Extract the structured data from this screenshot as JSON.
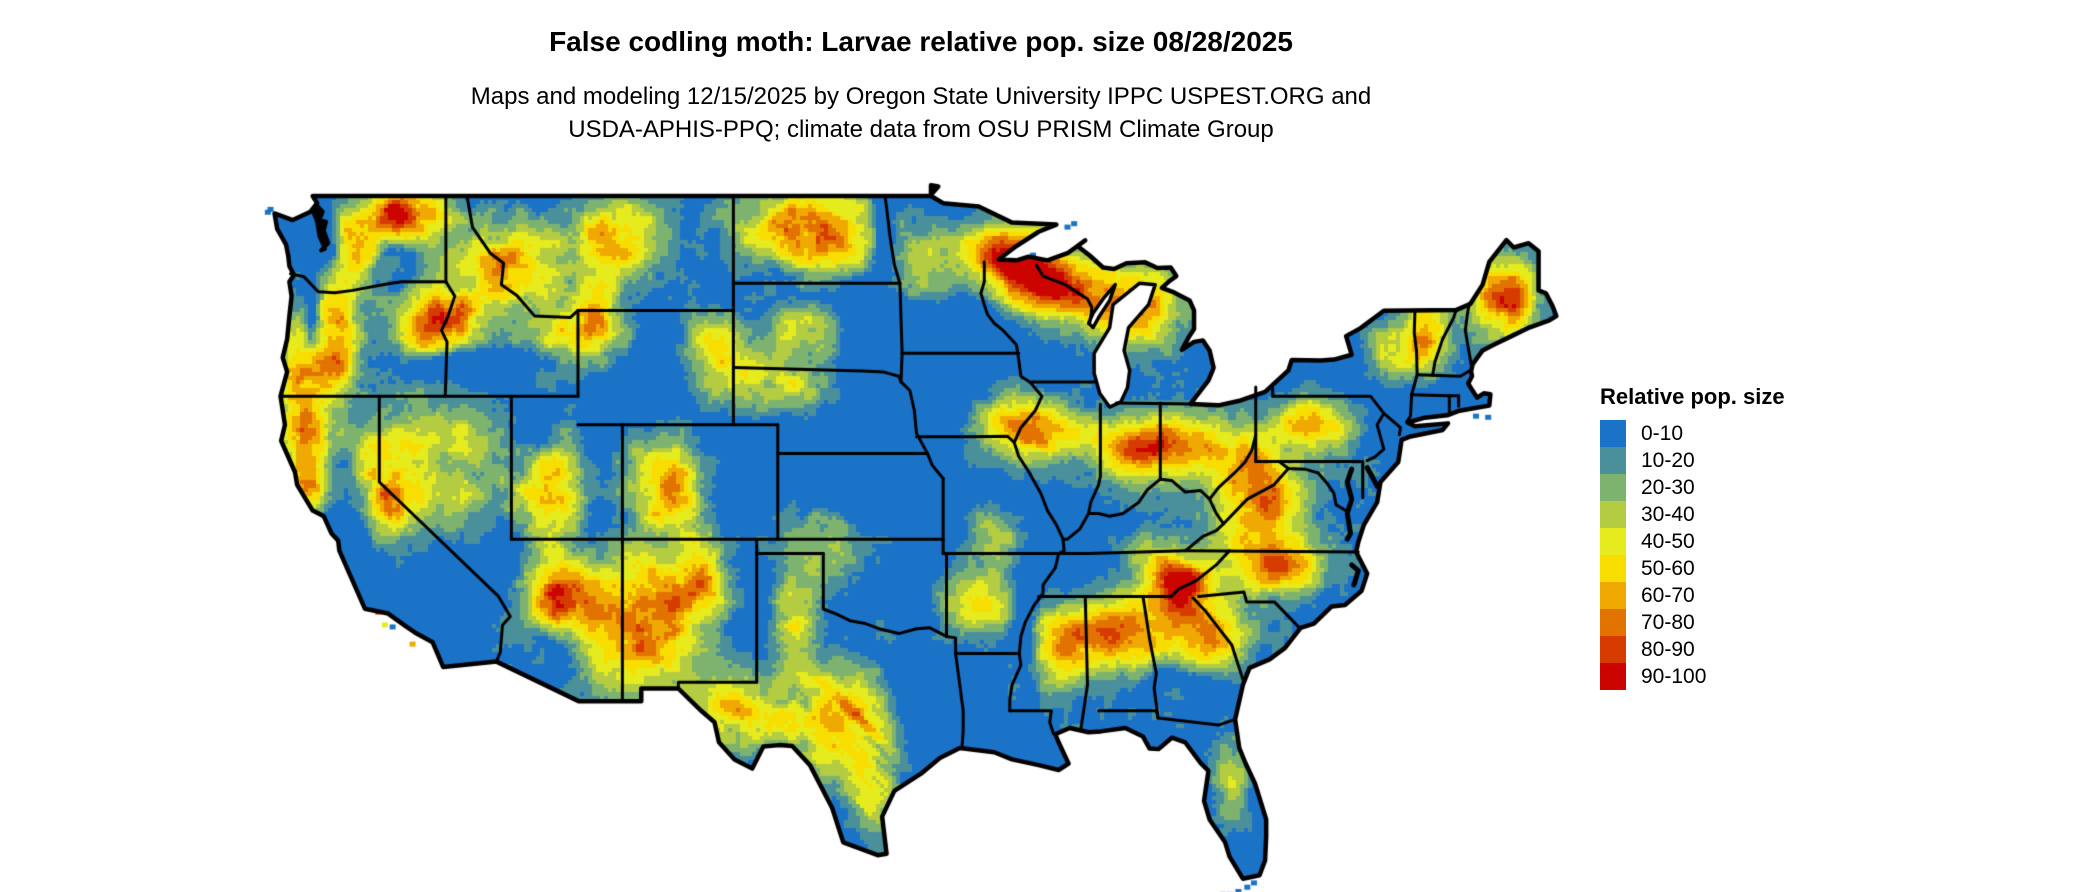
{
  "title": "False codling moth: Larvae relative pop. size 08/28/2025",
  "subtitle": {
    "line1": "Maps and modeling 12/15/2025 by Oregon State University IPPC USPEST.ORG and",
    "line2": "USDA-APHIS-PPQ; climate data from OSU PRISM Climate Group"
  },
  "legend": {
    "title": "Relative pop. size",
    "classes": [
      {
        "label": "0-10",
        "color": "#1b73c8"
      },
      {
        "label": "10-20",
        "color": "#4a909b"
      },
      {
        "label": "20-30",
        "color": "#7db36f"
      },
      {
        "label": "30-40",
        "color": "#b3cc41"
      },
      {
        "label": "40-50",
        "color": "#e6eb1e"
      },
      {
        "label": "50-60",
        "color": "#f8de00"
      },
      {
        "label": "60-70",
        "color": "#efa902"
      },
      {
        "label": "70-80",
        "color": "#e27300"
      },
      {
        "label": "80-90",
        "color": "#d63c00"
      },
      {
        "label": "90-100",
        "color": "#cb0400"
      }
    ]
  },
  "map": {
    "description": "Contiguous United States gridded raster of false codling moth larvae relative population size with state boundaries",
    "background": "#ffffff",
    "boundary_color": "#000000",
    "water_color": "#ffffff"
  }
}
